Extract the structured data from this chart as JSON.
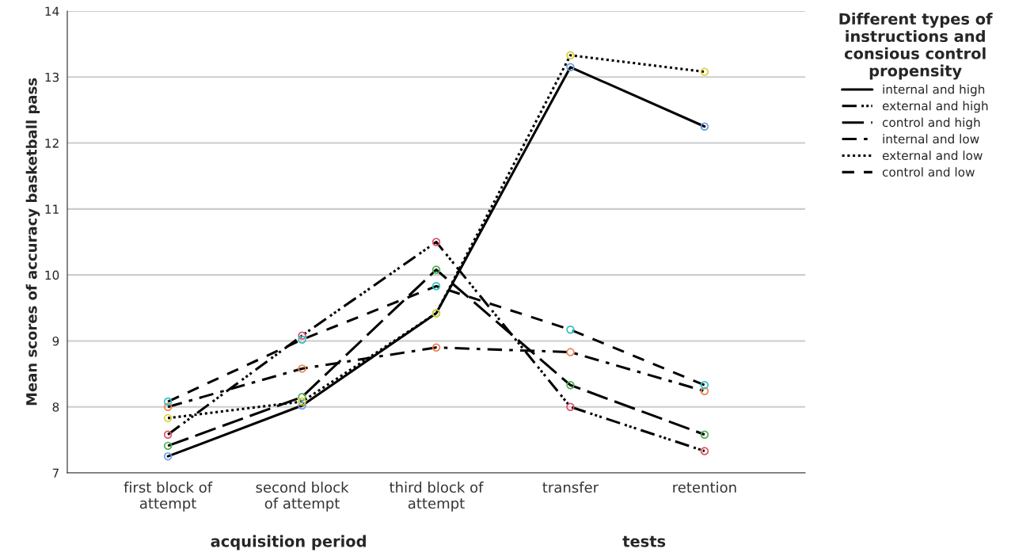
{
  "chart_data": {
    "type": "line",
    "ylabel": "Mean scores of accuracy basketball pass",
    "legend_title": "Different types of\ninstructions and\nconsious control\npropensity",
    "categories": [
      "first block of\nattempt",
      "second block\nof attempt",
      "third block of\nattempt",
      "transfer",
      "retention"
    ],
    "series": [
      {
        "name": "internal and high",
        "color": "#000000",
        "line_style": "solid",
        "colors": [
          "#6a9fe0",
          "#6a9fe0",
          "#6a9fe0",
          "#6a9fe0",
          "#6a9fe0"
        ],
        "values": [
          7.25,
          8.02,
          9.42,
          13.15,
          12.25
        ]
      },
      {
        "name": "external and high",
        "color": "#000000",
        "line_style": "dashdotdot",
        "colors": [
          "#e0506a",
          "#e0506a",
          "#e0506a",
          "#e0506a",
          "#e0506a"
        ],
        "values": [
          7.58,
          9.08,
          10.5,
          8.0,
          7.33
        ]
      },
      {
        "name": "control and high",
        "color": "#000000",
        "line_style": "longdash",
        "colors": [
          "#4caf50",
          "#4caf50",
          "#4caf50",
          "#4caf50",
          "#4caf50"
        ],
        "values": [
          7.41,
          8.15,
          10.08,
          8.33,
          7.58
        ]
      },
      {
        "name": "internal and low",
        "color": "#000000",
        "line_style": "dashdot",
        "colors": [
          "#f08050",
          "#f08050",
          "#f08050",
          "#f08050",
          "#f08050"
        ],
        "values": [
          8.0,
          8.58,
          8.9,
          8.83,
          8.24
        ]
      },
      {
        "name": "external and low",
        "color": "#000000",
        "line_style": "dotted",
        "colors": [
          "#d8d030",
          "#d8d030",
          "#d8d030",
          "#d8d030",
          "#d8d030"
        ],
        "values": [
          7.83,
          8.08,
          9.42,
          13.33,
          13.08
        ]
      },
      {
        "name": "control and low",
        "color": "#000000",
        "line_style": "dashed",
        "colors": [
          "#30c0c0",
          "#30c0c0",
          "#30c0c0",
          "#30c0c0",
          "#30c0c0"
        ],
        "values": [
          8.08,
          9.02,
          9.83,
          9.17,
          8.33
        ]
      }
    ],
    "ylim": [
      7,
      14
    ],
    "yticks": [
      7,
      8,
      9,
      10,
      11,
      12,
      13,
      14
    ],
    "grid": "y",
    "legend": "right",
    "marker": "circle",
    "annotations": [
      "acquisition period",
      "tests"
    ]
  }
}
